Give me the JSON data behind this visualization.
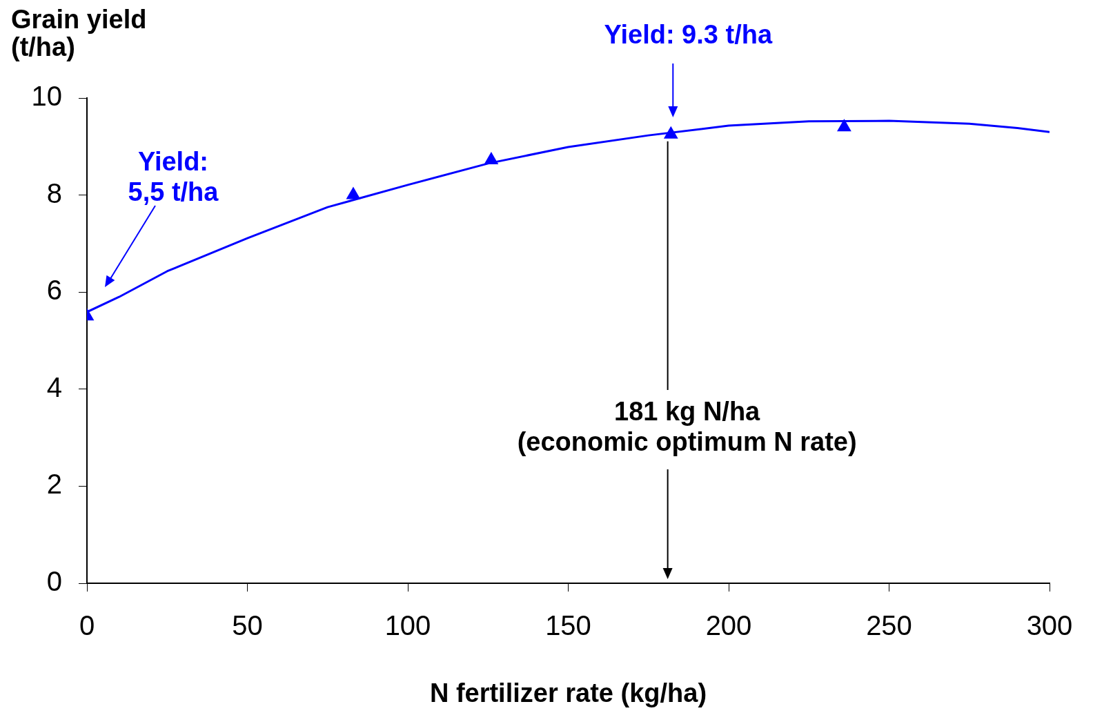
{
  "chart_data": {
    "type": "line",
    "xlabel": "N fertilizer rate (kg/ha)",
    "ylabel": "Grain yield\n(t/ha)",
    "xlim": [
      0,
      300
    ],
    "xticks": [
      0,
      50,
      100,
      150,
      200,
      250,
      300
    ],
    "ylim": [
      0,
      10
    ],
    "yticks": [
      0,
      2,
      4,
      6,
      8,
      10
    ],
    "grid": false,
    "legend": false,
    "series": [
      {
        "type": "line",
        "color": "#0000ff",
        "marker": "none",
        "x": [
          0,
          10,
          25,
          50,
          75,
          100,
          125,
          150,
          175,
          200,
          225,
          250,
          275,
          290,
          300
        ],
        "values": [
          5.59,
          5.9,
          6.43,
          7.11,
          7.75,
          8.21,
          8.65,
          8.99,
          9.23,
          9.43,
          9.52,
          9.53,
          9.47,
          9.38,
          9.3
        ]
      },
      {
        "type": "scatter",
        "color": "#0000ff",
        "marker": "triangle",
        "x": [
          0,
          83,
          126,
          182,
          236
        ],
        "values": [
          5.5,
          8.0,
          8.72,
          9.25,
          9.4
        ]
      }
    ],
    "ref_lines": [
      {
        "axis": "x",
        "value": 181,
        "label": "181 kg N/ha\n(economic optimum N rate)",
        "color": "#000000"
      }
    ],
    "annotations": [
      "Yield: 9.3 t/ha",
      "Yield:\n5,5 t/ha"
    ]
  }
}
